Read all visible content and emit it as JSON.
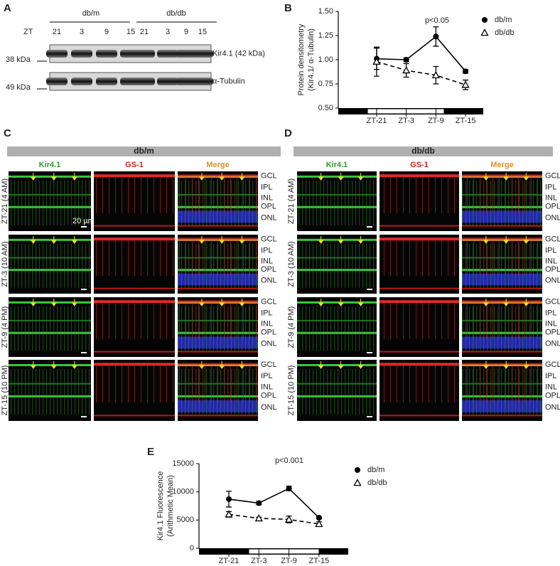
{
  "panel_letters": [
    "A",
    "B",
    "C",
    "D",
    "E"
  ],
  "blot": {
    "groups": [
      "db/m",
      "db/db"
    ],
    "zt_label": "ZT",
    "lanes": [
      "21",
      "3",
      "9",
      "15",
      "21",
      "3",
      "9",
      "15"
    ],
    "markers": [
      "38 kDa",
      "49 kDa"
    ],
    "bands": [
      "Kir4.1 (42 kDa)",
      "α-Tubulin"
    ]
  },
  "panel_c": {
    "title": "db/m",
    "columns": [
      "Kir4.1",
      "GS-1",
      "Merge"
    ],
    "rows": [
      "ZT-21 (4 AM)",
      "ZT-3 (10 AM)",
      "ZT-9 (4 PM)",
      "ZT-15 (10 PM)"
    ],
    "scale_bar": "20 µm"
  },
  "panel_d": {
    "title": "db/db",
    "columns": [
      "Kir4.1",
      "GS-1",
      "Merge"
    ],
    "rows": [
      "ZT-21 (4 AM)",
      "ZT-3 (10 AM)",
      "ZT-9 (4 PM)",
      "ZT-15 (10 PM)"
    ]
  },
  "layers": [
    "GCL",
    "IPL",
    "INL",
    "OPL",
    "ONL"
  ],
  "chart_data": [
    {
      "type": "line",
      "ylabel": [
        "Protein densitometry",
        "(Kir4.1/ α-Tubulin)"
      ],
      "categories": [
        "ZT-21",
        "ZT-3",
        "ZT-9",
        "ZT-15"
      ],
      "ylim": [
        0.5,
        1.5
      ],
      "yticks": [
        {
          "value": 0.5,
          "label": "0.50"
        },
        {
          "value": 0.75,
          "label": "0.75"
        },
        {
          "value": 1,
          "label": "1.00"
        },
        {
          "value": 1.25,
          "label": "1.25"
        },
        {
          "value": 1.5,
          "label": "1.50"
        }
      ],
      "grid": false,
      "legend": "right",
      "annotation": "p<0.05",
      "series": [
        {
          "name": "db/m",
          "color": "#000000",
          "marker": "circle",
          "line_style": "solid",
          "values": [
            1.01,
            1.0,
            1.24,
            0.88
          ],
          "errors": [
            0.11,
            0.02,
            0.1,
            0.02
          ]
        },
        {
          "name": "db/db",
          "color": "#000000",
          "marker": "triangle",
          "line_style": "dashed",
          "values": [
            0.98,
            0.89,
            0.84,
            0.74
          ],
          "errors": [
            0.15,
            0.07,
            0.09,
            0.05
          ]
        }
      ]
    },
    {
      "type": "line",
      "ylabel": [
        "Kir4.1 Fluorescence",
        "(Arithmetic Mean)"
      ],
      "categories": [
        "ZT-21",
        "ZT-3",
        "ZT-9",
        "ZT-15"
      ],
      "ylim": [
        0,
        15000
      ],
      "yticks": [
        0,
        5000,
        10000,
        15000
      ],
      "grid": false,
      "legend": "right",
      "annotation": "p<0.001",
      "series": [
        {
          "name": "db/m",
          "color": "#000000",
          "marker": "circle",
          "line_style": "solid",
          "values": [
            8700,
            8000,
            10600,
            5400
          ],
          "errors": [
            1400,
            300,
            400,
            200
          ]
        },
        {
          "name": "db/db",
          "color": "#000000",
          "marker": "triangle",
          "line_style": "dashed",
          "values": [
            6000,
            5300,
            5100,
            4300
          ],
          "errors": [
            500,
            200,
            600,
            400
          ]
        }
      ]
    }
  ]
}
